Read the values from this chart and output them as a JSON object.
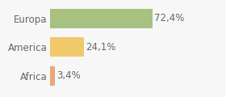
{
  "categories": [
    "Africa",
    "America",
    "Europa"
  ],
  "values": [
    3.4,
    24.1,
    72.4
  ],
  "labels": [
    "3,4%",
    "24,1%",
    "72,4%"
  ],
  "bar_colors": [
    "#e8a87c",
    "#f0c96a",
    "#a8c080"
  ],
  "background_color": "#f7f7f7",
  "xlim": [
    0,
    105
  ],
  "bar_height": 0.68,
  "label_fontsize": 8.5,
  "tick_fontsize": 8.5,
  "grid_color": "#ffffff",
  "grid_linewidth": 1.2,
  "text_color": "#666666"
}
